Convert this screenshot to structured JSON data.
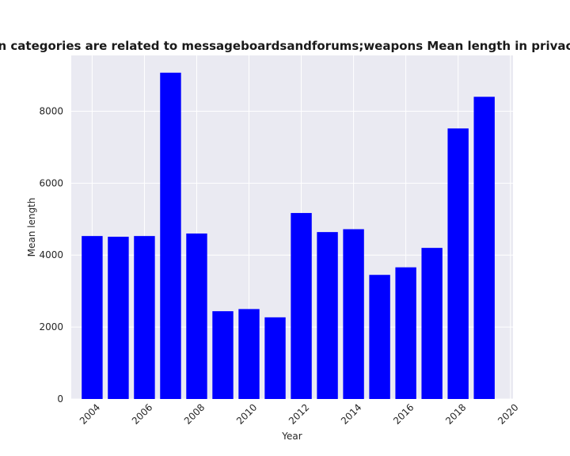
{
  "chart_data": {
    "type": "bar",
    "title": "Websites whose main categories are related to messageboardsandforums;weapons Mean length in privacy policies over time",
    "xlabel": "Year",
    "ylabel": "Mean length",
    "x": [
      2004,
      2005,
      2006,
      2007,
      2008,
      2009,
      2010,
      2011,
      2012,
      2013,
      2014,
      2015,
      2016,
      2017,
      2018,
      2019
    ],
    "values": [
      4530,
      4510,
      4530,
      9070,
      4600,
      2440,
      2500,
      2270,
      5170,
      4640,
      4720,
      3450,
      3660,
      4200,
      7520,
      8400
    ],
    "xlim": [
      2003.2,
      2020.1
    ],
    "ylim": [
      0,
      9550
    ],
    "xticks": [
      2004,
      2006,
      2008,
      2010,
      2012,
      2014,
      2016,
      2018,
      2020
    ],
    "yticks": [
      0,
      2000,
      4000,
      6000,
      8000
    ],
    "bar_color": "#0000ff",
    "background": "#eaeaf2",
    "grid": true
  }
}
